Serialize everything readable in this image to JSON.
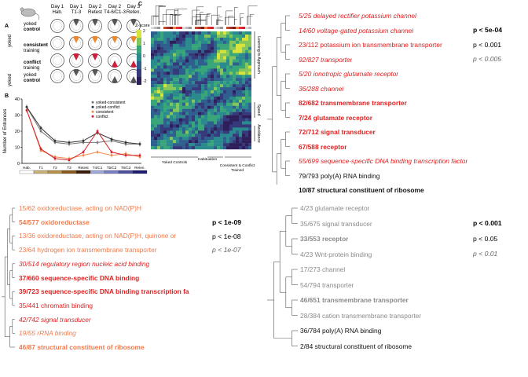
{
  "figure": {
    "panel_a": {
      "letter": "A",
      "days": [
        "Day 1\nHab.",
        "Day 1\nT1-3",
        "Day 2\nRetest",
        "Day 2\nT4-6/C1-3",
        "Day 3\nReten."
      ],
      "day_top": [
        "Day 1",
        "Day 1",
        "Day 2",
        "Day 2",
        "Day 3"
      ],
      "day_bottom": [
        "Hab.",
        "T1-3",
        "Retest",
        "T4-6/C1-3",
        "Reten."
      ],
      "rows": [
        {
          "group": "yoked",
          "bold": "control",
          "color": "#555555"
        },
        {
          "group": "",
          "bold": "consistent",
          "sub": "training",
          "color": "#e8892d"
        },
        {
          "group": "",
          "bold": "conflict",
          "sub": "training",
          "color": "#cc1f3c"
        },
        {
          "group": "yoked",
          "bold": "control",
          "color": "#555555"
        }
      ],
      "side_label_1": "yoked",
      "side_label_2": "yoked"
    },
    "panel_b": {
      "letter": "B",
      "ylabel": "Number of Entrances",
      "yticks": [
        "40",
        "30",
        "20",
        "10",
        "0"
      ],
      "xticks": [
        "Hab.",
        "T1",
        "T2",
        "T3",
        "Retest",
        "T4/C1",
        "T5/C2",
        "T6/C3",
        "Reten."
      ],
      "legend": [
        "yoked-consistent",
        "yoked-conflict",
        "consistent",
        "conflict"
      ],
      "colors": {
        "yoked_consistent": "#777777",
        "yoked_conflict": "#333333",
        "consistent": "#f08a4b",
        "conflict": "#d4202e"
      },
      "series": {
        "yoked_consistent": [
          35,
          20,
          13,
          12,
          13,
          13,
          14,
          12,
          12
        ],
        "yoked_conflict": [
          35,
          22,
          14,
          13,
          14,
          19,
          15,
          13,
          12
        ],
        "consistent": [
          33,
          8,
          4,
          3,
          5,
          7,
          5,
          6,
          4
        ],
        "conflict": [
          33,
          9,
          3,
          2,
          7,
          20,
          7,
          5,
          5
        ]
      }
    },
    "panel_c": {
      "letter": "C",
      "zscore_label": "Z-score",
      "zscale": [
        "2",
        "1",
        "0",
        "-1",
        "-2"
      ],
      "side_labels": [
        "Learning to Approach",
        "Speed",
        "Avoidance"
      ],
      "bottom_labels": [
        "Yoked Controls",
        "Habituation",
        "Consistent & Conflict Trained"
      ]
    }
  },
  "go_top_right": {
    "terms": [
      {
        "text": "5/25 delayed rectifier potassium channel",
        "color": "#e02020",
        "italic": true,
        "bold": false
      },
      {
        "text": "14/60 voltage-gated potassium channel",
        "color": "#e02020",
        "italic": true,
        "bold": false
      },
      {
        "text": "23/112 potassium ion transmembrane transporter",
        "color": "#e02020",
        "italic": false,
        "bold": false
      },
      {
        "text": "92/827 transporter",
        "color": "#e02020",
        "italic": true,
        "bold": false
      },
      {
        "text": "5/20 ionotropic glutamate receptor",
        "color": "#e02020",
        "italic": true,
        "bold": false
      },
      {
        "text": "36/288 channel",
        "color": "#e02020",
        "italic": true,
        "bold": false
      },
      {
        "text": "82/682 transmembrane transporter",
        "color": "#e02020",
        "italic": false,
        "bold": true
      },
      {
        "text": "7/24 glutamate receptor",
        "color": "#e02020",
        "italic": false,
        "bold": true
      },
      {
        "text": "72/712 signal transducer",
        "color": "#e02020",
        "italic": false,
        "bold": true
      },
      {
        "text": "67/588 receptor",
        "color": "#e02020",
        "italic": false,
        "bold": true
      },
      {
        "text": "55/699 sequence-specific DNA binding transcription factor",
        "color": "#e02020",
        "italic": true,
        "bold": false
      },
      {
        "text": "79/793 poly(A) RNA binding",
        "color": "#111111",
        "italic": false,
        "bold": false
      },
      {
        "text": "10/87 structural constituent of ribosome",
        "color": "#111111",
        "italic": false,
        "bold": true
      }
    ],
    "pvalues": [
      {
        "text": "p < 5e-04",
        "bold": true,
        "italic": false,
        "color": "#000000"
      },
      {
        "text": "p < 0.001",
        "bold": false,
        "italic": false,
        "color": "#000000"
      },
      {
        "text": "p < 0.005",
        "bold": false,
        "italic": true,
        "color": "#666666"
      }
    ]
  },
  "go_bottom_left": {
    "terms": [
      {
        "text": "15/62 oxidoreductase, acting on NAD(P)H",
        "color": "#f07a4a",
        "italic": false,
        "bold": false
      },
      {
        "text": "54/577 oxidoreductase",
        "color": "#f07a4a",
        "italic": false,
        "bold": true
      },
      {
        "text": "13/36 oxidoreductase, acting on NAD(P)H, quinone or",
        "color": "#f07a4a",
        "italic": false,
        "bold": false
      },
      {
        "text": "23/64 hydrogen ion transmembrane transporter",
        "color": "#f07a4a",
        "italic": false,
        "bold": false
      },
      {
        "text": "30/514 regulatory region nucleic acid binding",
        "color": "#e02020",
        "italic": true,
        "bold": false
      },
      {
        "text": "37/660 sequence-specific DNA binding",
        "color": "#e02020",
        "italic": false,
        "bold": true
      },
      {
        "text": "39/723 sequence-specific DNA binding transcription fa",
        "color": "#e02020",
        "italic": false,
        "bold": true
      },
      {
        "text": "35/441 chromatin binding",
        "color": "#e02020",
        "italic": false,
        "bold": false
      },
      {
        "text": "42/742 signal transducer",
        "color": "#e02020",
        "italic": true,
        "bold": false
      },
      {
        "text": "19/55 rRNA binding",
        "color": "#f07a4a",
        "italic": true,
        "bold": false
      },
      {
        "text": "46/87 structural constituent of ribosome",
        "color": "#f07a4a",
        "italic": false,
        "bold": true
      }
    ],
    "pvalues": [
      {
        "text": "p < 1e-09",
        "bold": true,
        "italic": false,
        "color": "#000000"
      },
      {
        "text": "p < 1e-08",
        "bold": false,
        "italic": false,
        "color": "#000000"
      },
      {
        "text": "p < 1e-07",
        "bold": false,
        "italic": true,
        "color": "#666666"
      }
    ]
  },
  "go_bottom_right": {
    "terms": [
      {
        "text": "4/23 glutamate receptor",
        "color": "#8a8a8a",
        "italic": false,
        "bold": false
      },
      {
        "text": "35/675 signal transducer",
        "color": "#8a8a8a",
        "italic": false,
        "bold": false
      },
      {
        "text": "33/553 receptor",
        "color": "#8a8a8a",
        "italic": false,
        "bold": true
      },
      {
        "text": "4/23 Wnt-protein binding",
        "color": "#8a8a8a",
        "italic": false,
        "bold": false
      },
      {
        "text": "17/273 channel",
        "color": "#8a8a8a",
        "italic": false,
        "bold": false
      },
      {
        "text": "54/794 transporter",
        "color": "#8a8a8a",
        "italic": false,
        "bold": false
      },
      {
        "text": "46/651 transmembrane transporter",
        "color": "#8a8a8a",
        "italic": false,
        "bold": true
      },
      {
        "text": "28/384 cation transmembrane transporter",
        "color": "#8a8a8a",
        "italic": false,
        "bold": false
      },
      {
        "text": "36/784 poly(A) RNA binding",
        "color": "#111111",
        "italic": false,
        "bold": false
      },
      {
        "text": "2/84 structural constituent of ribosome",
        "color": "#111111",
        "italic": false,
        "bold": false
      }
    ],
    "pvalues": [
      {
        "text": "p < 0.001",
        "bold": true,
        "italic": false,
        "color": "#000000"
      },
      {
        "text": "p < 0.05",
        "bold": false,
        "italic": false,
        "color": "#000000"
      },
      {
        "text": "p < 0.01",
        "bold": false,
        "italic": true,
        "color": "#666666"
      }
    ]
  }
}
